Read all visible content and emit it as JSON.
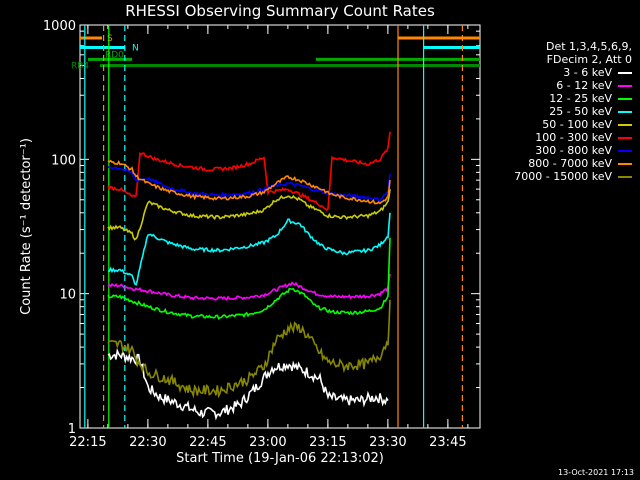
{
  "chart_data": {
    "type": "line",
    "title": "RHESSI Observing Summary Count Rates",
    "xlabel": "Start Time (19-Jan-06 22:13:02)",
    "ylabel": "Count Rate (s⁻¹ detector⁻¹)",
    "yscale": "log",
    "ylim": [
      1,
      1000
    ],
    "xlim_minutes": [
      0,
      100
    ],
    "x_tick_labels": [
      "22:15",
      "22:30",
      "22:45",
      "23:00",
      "23:15",
      "23:30",
      "23:45"
    ],
    "x_tick_minutes": [
      1.97,
      16.97,
      31.97,
      46.97,
      61.97,
      76.97,
      91.97
    ],
    "y_tick_labels": [
      "1",
      "10",
      "100",
      "1000"
    ],
    "y_tick_values": [
      1,
      10,
      100,
      1000
    ],
    "legend_header": [
      "Det 1,3,4,5,6,9,",
      "FDecim 2, Att 0"
    ],
    "legend_position": "right",
    "series": [
      {
        "name": "3 - 6 keV",
        "color": "#ffffff",
        "points": [
          [
            7,
            3.5
          ],
          [
            10,
            3.5
          ],
          [
            15,
            3.2
          ],
          [
            17,
            2.0
          ],
          [
            20,
            1.7
          ],
          [
            25,
            1.5
          ],
          [
            30,
            1.3
          ],
          [
            35,
            1.3
          ],
          [
            40,
            1.5
          ],
          [
            44,
            2.0
          ],
          [
            48,
            2.8
          ],
          [
            52,
            3.0
          ],
          [
            57,
            2.6
          ],
          [
            60,
            2.3
          ],
          [
            62,
            1.7
          ],
          [
            66,
            1.6
          ],
          [
            70,
            1.6
          ],
          [
            74,
            1.7
          ],
          [
            77,
            1.6
          ]
        ]
      },
      {
        "name": "6 - 12 keV",
        "color": "#ff00ff",
        "points": [
          [
            7,
            11.5
          ],
          [
            10,
            11.5
          ],
          [
            14,
            10.8
          ],
          [
            17,
            10.5
          ],
          [
            22,
            9.8
          ],
          [
            28,
            9.3
          ],
          [
            35,
            9.2
          ],
          [
            42,
            9.4
          ],
          [
            46,
            9.8
          ],
          [
            50,
            11.0
          ],
          [
            53,
            12.0
          ],
          [
            56,
            11.0
          ],
          [
            59,
            10.0
          ],
          [
            63,
            9.5
          ],
          [
            68,
            9.5
          ],
          [
            72,
            9.6
          ],
          [
            75,
            10.0
          ],
          [
            77,
            11.0
          ],
          [
            77.5,
            14.0
          ]
        ]
      },
      {
        "name": "12 - 25 keV",
        "color": "#00ff00",
        "points": [
          [
            7,
            9.5
          ],
          [
            10,
            9.5
          ],
          [
            14,
            8.6
          ],
          [
            17,
            8.0
          ],
          [
            22,
            7.3
          ],
          [
            28,
            6.8
          ],
          [
            35,
            6.7
          ],
          [
            42,
            7.0
          ],
          [
            46,
            7.6
          ],
          [
            50,
            9.5
          ],
          [
            53,
            11.0
          ],
          [
            56,
            9.8
          ],
          [
            59,
            8.0
          ],
          [
            63,
            7.3
          ],
          [
            68,
            7.2
          ],
          [
            72,
            7.4
          ],
          [
            75,
            7.8
          ],
          [
            77,
            9.5
          ],
          [
            77.5,
            26.0
          ]
        ]
      },
      {
        "name": "25 - 50 keV",
        "color": "#00ffff",
        "points": [
          [
            7,
            15.0
          ],
          [
            10,
            15.0
          ],
          [
            13,
            13.5
          ],
          [
            14,
            11.5
          ],
          [
            17,
            28.0
          ],
          [
            22,
            24.0
          ],
          [
            28,
            21.5
          ],
          [
            35,
            21.0
          ],
          [
            42,
            22.5
          ],
          [
            46,
            24.0
          ],
          [
            49,
            27.0
          ],
          [
            52,
            35.0
          ],
          [
            55,
            33.0
          ],
          [
            57,
            28.0
          ],
          [
            60,
            23.0
          ],
          [
            62,
            21.5
          ],
          [
            66,
            20.0
          ],
          [
            72,
            21.0
          ],
          [
            75,
            23.0
          ],
          [
            77,
            27.0
          ],
          [
            77.5,
            40.0
          ]
        ]
      },
      {
        "name": "50 - 100 keV",
        "color": "#cccc00",
        "points": [
          [
            7,
            31.0
          ],
          [
            10,
            31.0
          ],
          [
            13,
            28.0
          ],
          [
            14,
            25.0
          ],
          [
            17,
            48.0
          ],
          [
            22,
            42.0
          ],
          [
            28,
            38.0
          ],
          [
            35,
            37.0
          ],
          [
            42,
            39.0
          ],
          [
            46,
            42.0
          ],
          [
            49,
            50.0
          ],
          [
            52,
            54.0
          ],
          [
            55,
            50.0
          ],
          [
            57,
            45.0
          ],
          [
            60,
            41.0
          ],
          [
            62,
            38.0
          ],
          [
            66,
            37.0
          ],
          [
            72,
            38.0
          ],
          [
            75,
            41.0
          ],
          [
            77,
            48.0
          ],
          [
            77.5,
            60.0
          ]
        ]
      },
      {
        "name": "100 - 300 keV",
        "color": "#ff0000",
        "points": [
          [
            7,
            62.0
          ],
          [
            10,
            60.0
          ],
          [
            13,
            53.0
          ],
          [
            14,
            52.0
          ],
          [
            15,
            112.0
          ],
          [
            19,
            100.0
          ],
          [
            25,
            90.0
          ],
          [
            32,
            84.0
          ],
          [
            38,
            86.0
          ],
          [
            43,
            94.0
          ],
          [
            46,
            104.0
          ],
          [
            47,
            57.0
          ],
          [
            52,
            60.0
          ],
          [
            56,
            53.0
          ],
          [
            60,
            46.0
          ],
          [
            62,
            42.0
          ],
          [
            63,
            104.0
          ],
          [
            67,
            98.0
          ],
          [
            72,
            92.0
          ],
          [
            75,
            100.0
          ],
          [
            77,
            120.0
          ],
          [
            77.5,
            160.0
          ]
        ]
      },
      {
        "name": "300 - 800 keV",
        "color": "#0000ff",
        "points": [
          [
            7,
            88.0
          ],
          [
            10,
            86.0
          ],
          [
            13,
            79.0
          ],
          [
            14,
            70.0
          ],
          [
            17,
            72.0
          ],
          [
            22,
            62.0
          ],
          [
            28,
            56.0
          ],
          [
            35,
            54.0
          ],
          [
            42,
            56.0
          ],
          [
            46,
            60.0
          ],
          [
            49,
            64.0
          ],
          [
            52,
            66.0
          ],
          [
            55,
            64.0
          ],
          [
            58,
            60.0
          ],
          [
            61,
            57.0
          ],
          [
            62,
            56.0
          ],
          [
            66,
            54.0
          ],
          [
            72,
            52.0
          ],
          [
            75,
            50.0
          ],
          [
            77,
            58.0
          ],
          [
            77.5,
            78.0
          ]
        ]
      },
      {
        "name": "800 - 7000 keV",
        "color": "#ff8800",
        "points": [
          [
            7,
            96.0
          ],
          [
            10,
            94.0
          ],
          [
            13,
            84.0
          ],
          [
            14,
            75.0
          ],
          [
            17,
            66.0
          ],
          [
            22,
            58.0
          ],
          [
            28,
            53.0
          ],
          [
            35,
            51.0
          ],
          [
            42,
            53.0
          ],
          [
            46,
            57.0
          ],
          [
            49,
            66.0
          ],
          [
            52,
            74.0
          ],
          [
            55,
            70.0
          ],
          [
            58,
            64.0
          ],
          [
            61,
            59.0
          ],
          [
            62,
            56.0
          ],
          [
            66,
            52.0
          ],
          [
            72,
            49.0
          ],
          [
            75,
            47.0
          ],
          [
            77,
            52.0
          ],
          [
            77.5,
            70.0
          ]
        ]
      },
      {
        "name": "7000 - 15000 keV",
        "color": "#888800",
        "points": [
          [
            7,
            4.2
          ],
          [
            10,
            4.2
          ],
          [
            13,
            3.8
          ],
          [
            14,
            3.3
          ],
          [
            17,
            2.6
          ],
          [
            22,
            2.3
          ],
          [
            28,
            1.9
          ],
          [
            35,
            1.9
          ],
          [
            42,
            2.3
          ],
          [
            46,
            2.9
          ],
          [
            49,
            4.5
          ],
          [
            52,
            5.5
          ],
          [
            55,
            5.6
          ],
          [
            57,
            4.8
          ],
          [
            60,
            3.6
          ],
          [
            62,
            3.1
          ],
          [
            66,
            2.9
          ],
          [
            72,
            3.0
          ],
          [
            75,
            3.5
          ],
          [
            77,
            4.5
          ],
          [
            77.5,
            9.0
          ]
        ]
      }
    ],
    "vertical_markers": [
      {
        "minute": 1.2,
        "color": "#00ffff",
        "style": "solid"
      },
      {
        "minute": 5.9,
        "color": "#ff8800",
        "style": "dashed"
      },
      {
        "minute": 7.2,
        "color": "#00ff00",
        "style": "solid"
      },
      {
        "minute": 11.2,
        "color": "#00ffff",
        "style": "dashed"
      },
      {
        "minute": 79.5,
        "color": "#ff8800",
        "style": "solid"
      },
      {
        "minute": 85.9,
        "color": "#00ffff",
        "style": "solid"
      },
      {
        "minute": 95.6,
        "color": "#ff8800",
        "style": "dashed"
      }
    ],
    "flag_bars": [
      {
        "label": "S",
        "color": "#ff8800",
        "level": 800,
        "segments": [
          [
            0,
            5.5
          ],
          [
            79.5,
            100
          ]
        ]
      },
      {
        "label": "N",
        "color": "#00ffff",
        "level": 680,
        "segments": [
          [
            0,
            11.2
          ],
          [
            86,
            100
          ]
        ]
      },
      {
        "label": "RD0",
        "color": "#00aa00",
        "level": 555,
        "segments": [
          [
            2,
            13
          ],
          [
            59,
            100
          ]
        ]
      },
      {
        "label": "RB4",
        "color": "#008800",
        "level": 500,
        "segments": [
          [
            5,
            15
          ],
          [
            15,
            47
          ],
          [
            47,
            62
          ],
          [
            62,
            100
          ]
        ]
      }
    ]
  },
  "timestamp": "13-Oct-2021 17:13"
}
